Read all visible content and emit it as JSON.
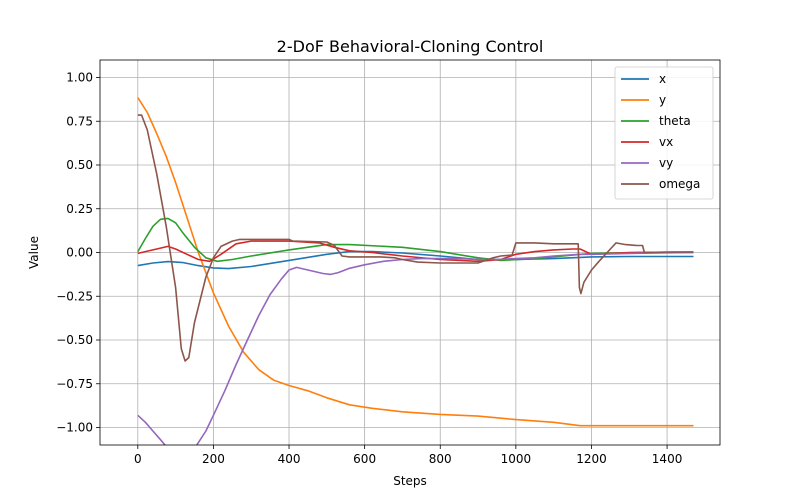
{
  "chart_data": {
    "type": "line",
    "title": "2-DoF Behavioral-Cloning Control",
    "xlabel": "Steps",
    "ylabel": "Value",
    "xlim": [
      -100,
      1540
    ],
    "ylim": [
      -1.1,
      1.1
    ],
    "xticks": [
      0,
      200,
      400,
      600,
      800,
      1000,
      1200,
      1400
    ],
    "yticks": [
      -1.0,
      -0.75,
      -0.5,
      -0.25,
      0.0,
      0.25,
      0.5,
      0.75,
      1.0
    ],
    "xtick_labels": [
      "0",
      "200",
      "400",
      "600",
      "800",
      "1000",
      "1200",
      "1400"
    ],
    "ytick_labels": [
      "−1.00",
      "−0.75",
      "−0.50",
      "−0.25",
      "0.00",
      "0.25",
      "0.50",
      "0.75",
      "1.00"
    ],
    "grid": true,
    "legend_position": "top-right",
    "series": [
      {
        "name": "x",
        "color": "#1f77b4",
        "points": [
          [
            0,
            -0.075
          ],
          [
            40,
            -0.06
          ],
          [
            80,
            -0.052
          ],
          [
            120,
            -0.058
          ],
          [
            160,
            -0.075
          ],
          [
            200,
            -0.088
          ],
          [
            240,
            -0.092
          ],
          [
            300,
            -0.08
          ],
          [
            400,
            -0.045
          ],
          [
            500,
            -0.01
          ],
          [
            560,
            0.005
          ],
          [
            620,
            0.005
          ],
          [
            700,
            -0.003
          ],
          [
            800,
            -0.02
          ],
          [
            900,
            -0.04
          ],
          [
            1000,
            -0.04
          ],
          [
            1100,
            -0.035
          ],
          [
            1200,
            -0.025
          ],
          [
            1300,
            -0.023
          ],
          [
            1470,
            -0.023
          ]
        ]
      },
      {
        "name": "y",
        "color": "#ff7f0e",
        "points": [
          [
            0,
            0.885
          ],
          [
            25,
            0.8
          ],
          [
            50,
            0.68
          ],
          [
            75,
            0.55
          ],
          [
            100,
            0.4
          ],
          [
            130,
            0.2
          ],
          [
            160,
            0.0
          ],
          [
            200,
            -0.23
          ],
          [
            240,
            -0.42
          ],
          [
            280,
            -0.57
          ],
          [
            320,
            -0.67
          ],
          [
            360,
            -0.73
          ],
          [
            400,
            -0.76
          ],
          [
            450,
            -0.79
          ],
          [
            500,
            -0.83
          ],
          [
            560,
            -0.87
          ],
          [
            620,
            -0.89
          ],
          [
            700,
            -0.91
          ],
          [
            800,
            -0.925
          ],
          [
            900,
            -0.935
          ],
          [
            1000,
            -0.955
          ],
          [
            1100,
            -0.97
          ],
          [
            1170,
            -0.99
          ],
          [
            1250,
            -0.99
          ],
          [
            1470,
            -0.99
          ]
        ]
      },
      {
        "name": "theta",
        "color": "#2ca02c",
        "points": [
          [
            0,
            0.005
          ],
          [
            20,
            0.08
          ],
          [
            40,
            0.15
          ],
          [
            60,
            0.19
          ],
          [
            80,
            0.195
          ],
          [
            100,
            0.17
          ],
          [
            120,
            0.11
          ],
          [
            150,
            0.03
          ],
          [
            180,
            -0.03
          ],
          [
            210,
            -0.05
          ],
          [
            250,
            -0.04
          ],
          [
            300,
            -0.02
          ],
          [
            400,
            0.015
          ],
          [
            500,
            0.045
          ],
          [
            560,
            0.045
          ],
          [
            700,
            0.03
          ],
          [
            800,
            0.005
          ],
          [
            900,
            -0.03
          ],
          [
            960,
            -0.045
          ],
          [
            1050,
            -0.035
          ],
          [
            1150,
            -0.015
          ],
          [
            1200,
            -0.005
          ],
          [
            1250,
            -0.003
          ],
          [
            1400,
            0.0
          ],
          [
            1470,
            0.0
          ]
        ]
      },
      {
        "name": "vx",
        "color": "#d62728",
        "points": [
          [
            0,
            -0.005
          ],
          [
            40,
            0.015
          ],
          [
            80,
            0.035
          ],
          [
            100,
            0.02
          ],
          [
            130,
            -0.01
          ],
          [
            160,
            -0.04
          ],
          [
            190,
            -0.05
          ],
          [
            220,
            -0.01
          ],
          [
            260,
            0.05
          ],
          [
            300,
            0.065
          ],
          [
            400,
            0.065
          ],
          [
            480,
            0.055
          ],
          [
            520,
            0.03
          ],
          [
            560,
            0.01
          ],
          [
            620,
            0.0
          ],
          [
            700,
            -0.02
          ],
          [
            800,
            -0.04
          ],
          [
            900,
            -0.05
          ],
          [
            930,
            -0.045
          ],
          [
            960,
            -0.04
          ],
          [
            1000,
            -0.01
          ],
          [
            1050,
            0.005
          ],
          [
            1100,
            0.015
          ],
          [
            1150,
            0.02
          ],
          [
            1170,
            0.02
          ],
          [
            1200,
            -0.01
          ],
          [
            1300,
            0.0
          ],
          [
            1470,
            0.003
          ]
        ]
      },
      {
        "name": "vy",
        "color": "#9467bd",
        "points": [
          [
            0,
            -0.93
          ],
          [
            20,
            -0.97
          ],
          [
            40,
            -1.02
          ],
          [
            60,
            -1.07
          ],
          [
            80,
            -1.12
          ],
          [
            100,
            -1.16
          ],
          [
            130,
            -1.18
          ],
          [
            150,
            -1.12
          ],
          [
            180,
            -1.02
          ],
          [
            200,
            -0.93
          ],
          [
            230,
            -0.79
          ],
          [
            260,
            -0.64
          ],
          [
            290,
            -0.5
          ],
          [
            320,
            -0.36
          ],
          [
            350,
            -0.24
          ],
          [
            380,
            -0.15
          ],
          [
            400,
            -0.1
          ],
          [
            420,
            -0.085
          ],
          [
            450,
            -0.1
          ],
          [
            490,
            -0.12
          ],
          [
            510,
            -0.125
          ],
          [
            530,
            -0.115
          ],
          [
            560,
            -0.09
          ],
          [
            600,
            -0.07
          ],
          [
            650,
            -0.05
          ],
          [
            700,
            -0.04
          ],
          [
            750,
            -0.035
          ],
          [
            800,
            -0.035
          ],
          [
            850,
            -0.035
          ],
          [
            900,
            -0.04
          ],
          [
            950,
            -0.04
          ],
          [
            1000,
            -0.035
          ],
          [
            1050,
            -0.03
          ],
          [
            1100,
            -0.02
          ],
          [
            1170,
            -0.01
          ],
          [
            1200,
            -0.01
          ],
          [
            1300,
            -0.005
          ],
          [
            1470,
            0.0
          ]
        ]
      },
      {
        "name": "omega",
        "color": "#8c564b",
        "points": [
          [
            0,
            0.785
          ],
          [
            10,
            0.785
          ],
          [
            25,
            0.7
          ],
          [
            50,
            0.45
          ],
          [
            75,
            0.15
          ],
          [
            100,
            -0.2
          ],
          [
            115,
            -0.55
          ],
          [
            125,
            -0.62
          ],
          [
            135,
            -0.6
          ],
          [
            150,
            -0.4
          ],
          [
            180,
            -0.14
          ],
          [
            200,
            -0.03
          ],
          [
            220,
            0.035
          ],
          [
            250,
            0.065
          ],
          [
            270,
            0.075
          ],
          [
            300,
            0.075
          ],
          [
            400,
            0.075
          ],
          [
            410,
            0.065
          ],
          [
            500,
            0.06
          ],
          [
            520,
            0.04
          ],
          [
            540,
            -0.02
          ],
          [
            560,
            -0.025
          ],
          [
            640,
            -0.025
          ],
          [
            680,
            -0.03
          ],
          [
            700,
            -0.04
          ],
          [
            740,
            -0.055
          ],
          [
            800,
            -0.06
          ],
          [
            900,
            -0.06
          ],
          [
            920,
            -0.045
          ],
          [
            940,
            -0.03
          ],
          [
            960,
            -0.02
          ],
          [
            990,
            -0.015
          ],
          [
            1000,
            0.055
          ],
          [
            1050,
            0.055
          ],
          [
            1100,
            0.05
          ],
          [
            1165,
            0.05
          ],
          [
            1168,
            -0.2
          ],
          [
            1172,
            -0.235
          ],
          [
            1180,
            -0.17
          ],
          [
            1200,
            -0.1
          ],
          [
            1220,
            -0.05
          ],
          [
            1250,
            0.02
          ],
          [
            1265,
            0.055
          ],
          [
            1290,
            0.045
          ],
          [
            1320,
            0.04
          ],
          [
            1335,
            0.04
          ],
          [
            1340,
            0.0
          ],
          [
            1400,
            0.003
          ],
          [
            1470,
            0.003
          ]
        ]
      }
    ]
  }
}
